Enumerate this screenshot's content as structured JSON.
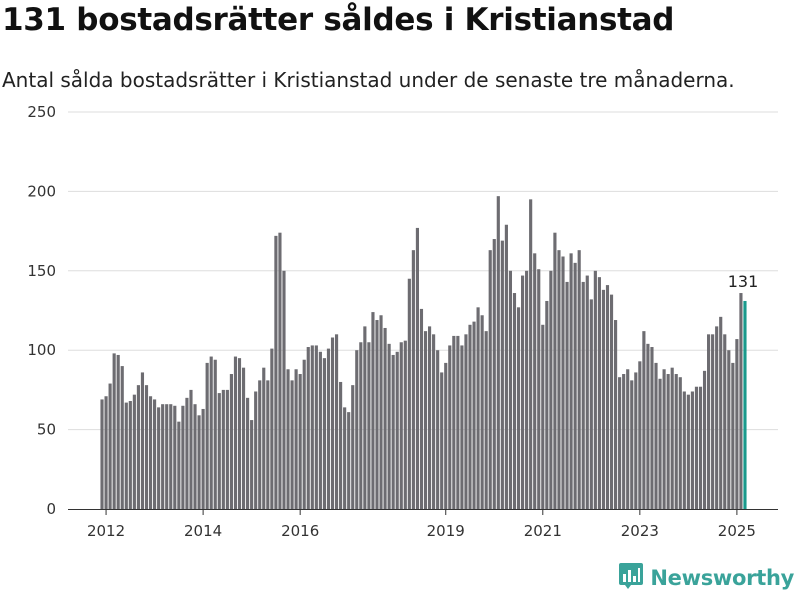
{
  "header": {
    "title": "131 bostadsrätter såldes i Kristianstad",
    "subtitle": "Antal sålda bostadsrätter i Kristianstad under de senaste tre månaderna."
  },
  "brand": {
    "name": "Newsworthy",
    "logo_icon": "newsworthy-chart-logo-icon"
  },
  "colors": {
    "bar": "#6d6c71",
    "highlight": "#1a9a8c",
    "grid": "#dddddd",
    "brand": "#3aa39a"
  },
  "chart_data": {
    "type": "bar",
    "title": "131 bostadsrätter såldes i Kristianstad",
    "subtitle": "Antal sålda bostadsrätter i Kristianstad under de senaste tre månaderna.",
    "xlabel": "",
    "ylabel": "",
    "ylim": [
      0,
      250
    ],
    "yticks": [
      0,
      50,
      100,
      150,
      200,
      250
    ],
    "xtick_labels": [
      "2012",
      "2014",
      "2016",
      "2019",
      "2021",
      "2023",
      "2025"
    ],
    "xtick_positions": [
      "2012-01",
      "2014-01",
      "2016-01",
      "2019-01",
      "2021-01",
      "2023-01",
      "2025-01"
    ],
    "grid": true,
    "legend": "none",
    "start_month": "2011-12",
    "values": [
      69,
      71,
      79,
      98,
      97,
      90,
      67,
      68,
      72,
      78,
      86,
      78,
      71,
      69,
      64,
      66,
      66,
      66,
      65,
      55,
      65,
      70,
      75,
      66,
      59,
      63,
      92,
      96,
      94,
      73,
      75,
      75,
      85,
      96,
      95,
      89,
      70,
      56,
      74,
      81,
      89,
      81,
      101,
      172,
      174,
      150,
      88,
      81,
      88,
      85,
      94,
      102,
      103,
      103,
      99,
      95,
      101,
      108,
      110,
      80,
      64,
      61,
      78,
      100,
      105,
      115,
      105,
      124,
      119,
      122,
      114,
      104,
      97,
      99,
      105,
      106,
      145,
      163,
      177,
      126,
      112,
      115,
      110,
      100,
      86,
      92,
      103,
      109,
      109,
      103,
      110,
      116,
      118,
      127,
      122,
      112,
      163,
      170,
      197,
      169,
      179,
      150,
      136,
      127,
      147,
      150,
      195,
      161,
      151,
      116,
      131,
      150,
      174,
      163,
      159,
      143,
      161,
      155,
      163,
      143,
      147,
      132,
      150,
      146,
      138,
      141,
      135,
      119,
      83,
      85,
      88,
      81,
      86,
      93,
      112,
      104,
      102,
      92,
      82,
      88,
      85,
      89,
      85,
      83,
      74,
      72,
      74,
      77,
      77,
      87,
      110,
      110,
      115,
      121,
      110,
      100,
      92,
      107,
      136,
      131
    ],
    "highlight_index": 159,
    "data_label": "131"
  }
}
